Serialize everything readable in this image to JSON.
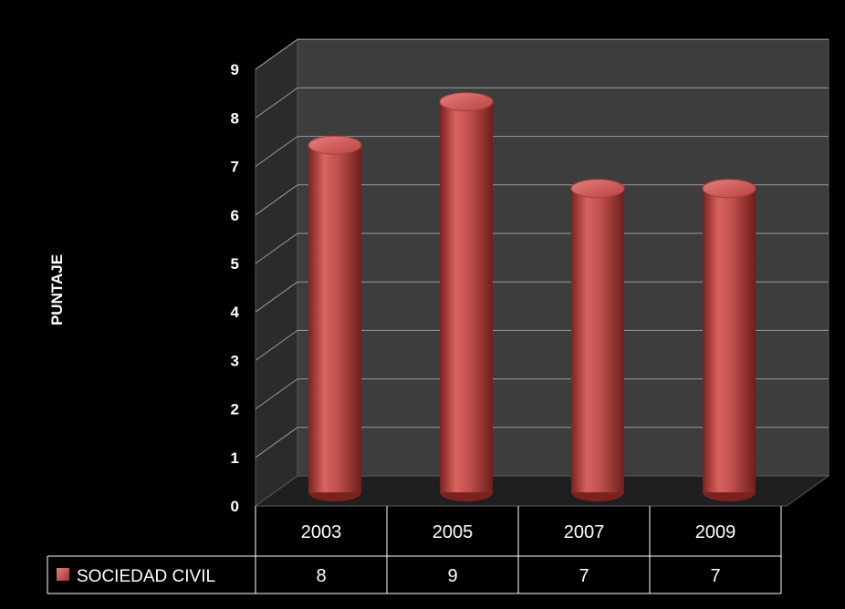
{
  "chart_data": {
    "type": "bar",
    "categories": [
      "2003",
      "2005",
      "2007",
      "2009"
    ],
    "series": [
      {
        "name": "SOCIEDAD CIVIL",
        "values": [
          8,
          9,
          7,
          7
        ],
        "color": "#c0504d"
      }
    ],
    "title": "",
    "xlabel": "",
    "ylabel": "PUNTAJE",
    "ylim": [
      0,
      9
    ],
    "yticks": [
      0,
      1,
      2,
      3,
      4,
      5,
      6,
      7,
      8,
      9
    ],
    "grid": true,
    "data_table": true,
    "style": "3d-cylinder"
  },
  "colors": {
    "background": "#000000",
    "wall": "#3c3c3c",
    "side_wall": "#2a2a2a",
    "grid": "#9a9a9a",
    "bar": "#c0504d",
    "text": "#ffffff"
  }
}
